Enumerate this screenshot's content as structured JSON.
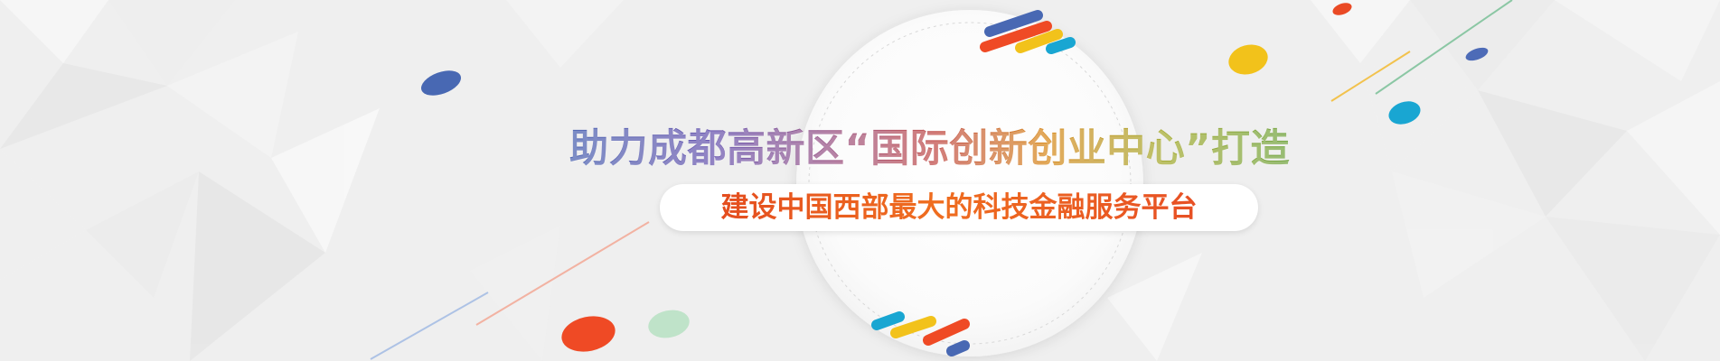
{
  "banner": {
    "headline": "助力成都高新区“国际创新创业中心”打造",
    "subtitle": "建设中国西部最大的科技金融服务平台",
    "colors": {
      "headline_blue": "#4f66b2",
      "headline_orange": "#d98d24",
      "headline_green": "#56a24f",
      "subtitle_orange": "#ef6d1f",
      "accent_red": "#ef4a25",
      "accent_yellow": "#f2c21b",
      "accent_blue": "#1fa4d1",
      "accent_indigo": "#4868b3",
      "accent_mint": "#bfe3c9"
    }
  }
}
